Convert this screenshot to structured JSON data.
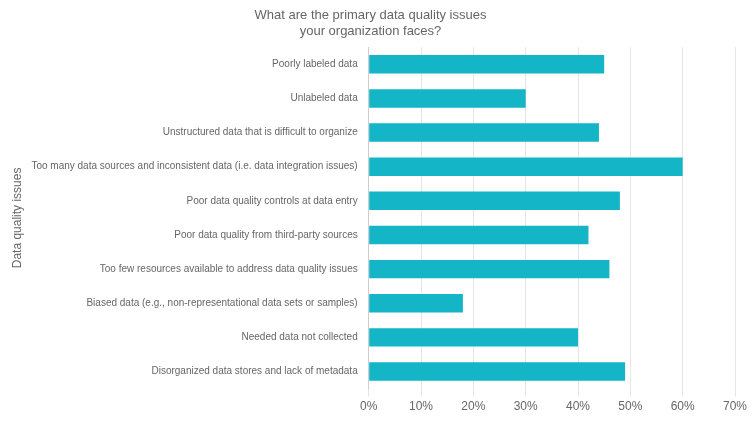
{
  "chart_data": {
    "type": "bar",
    "orientation": "horizontal",
    "title": "What are the primary data quality issues\nyour organization faces?",
    "ylabel": "Data quality issues",
    "categories": [
      "Disorganized data stores and lack of metadata",
      "Needed data not collected",
      "Biased data (e.g., non-representational data sets or samples)",
      "Too few resources available to address data quality issues",
      "Poor data quality from third-party sources",
      "Poor data quality controls at data entry",
      "Too many data sources and inconsistent data (i.e. data integration issues)",
      "Unstructured data that is difficult to organize",
      "Unlabeled data",
      "Poorly labeled data"
    ],
    "values": [
      49,
      40,
      18,
      46,
      42,
      48,
      60,
      44,
      30,
      45
    ],
    "color": "#13B5C7",
    "xlim": [
      0,
      70
    ],
    "xticks": [
      {
        "value": 0,
        "label": "0%"
      },
      {
        "value": 10,
        "label": "10%"
      },
      {
        "value": 20,
        "label": "20%"
      },
      {
        "value": 30,
        "label": "30%"
      },
      {
        "value": 40,
        "label": "40%"
      },
      {
        "value": 50,
        "label": "50%"
      },
      {
        "value": 60,
        "label": "60%"
      },
      {
        "value": 70,
        "label": "70%"
      }
    ],
    "grid": true
  }
}
